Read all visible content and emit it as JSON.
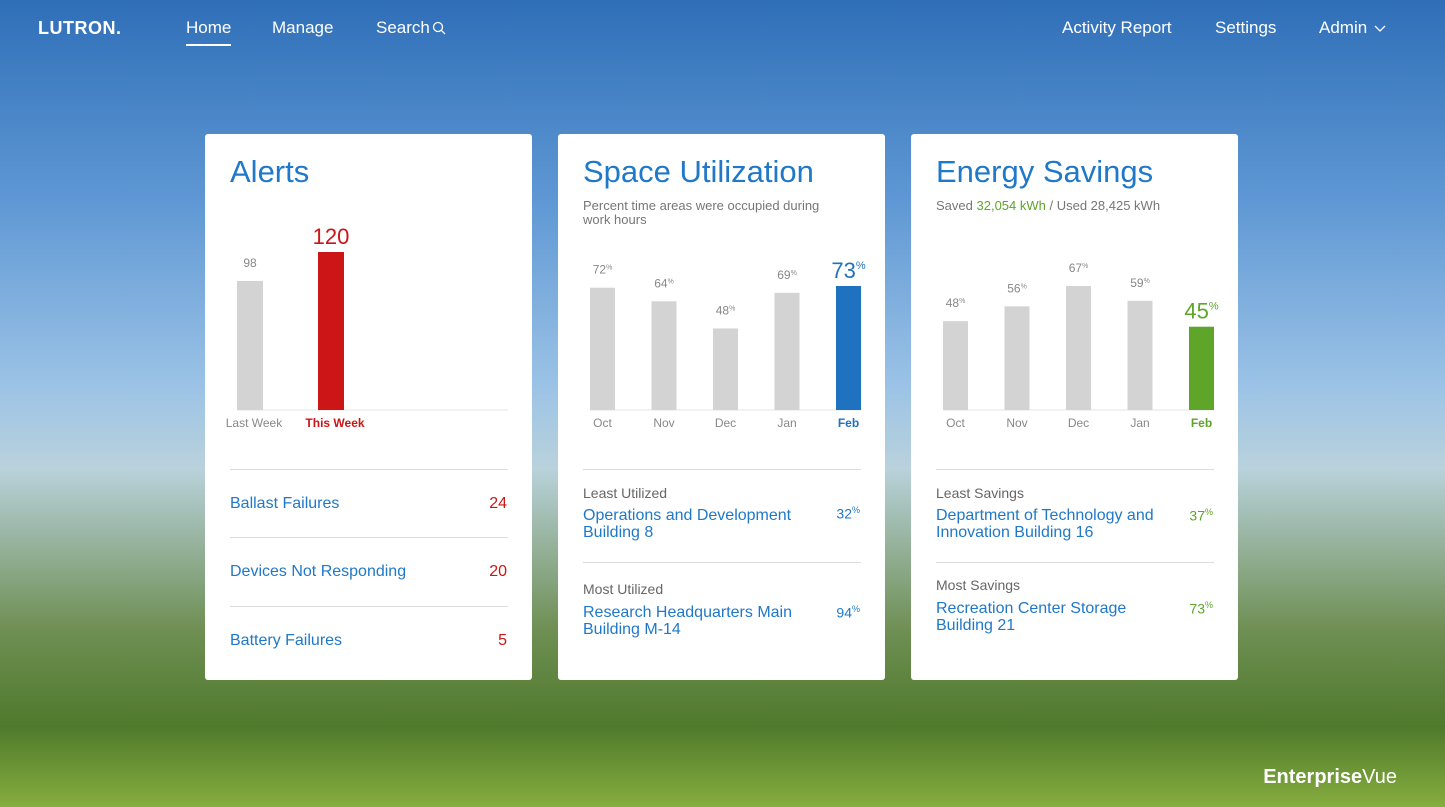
{
  "nav": {
    "brand": "LUTRON.",
    "left": [
      "Home",
      "Manage",
      "Search"
    ],
    "right": [
      "Activity Report",
      "Settings",
      "Admin"
    ]
  },
  "alerts": {
    "title": "Alerts",
    "chart": {
      "type": "bar",
      "categories": [
        "Last Week",
        "This Week"
      ],
      "values": [
        98,
        120
      ],
      "colors": [
        "#d3d3d3",
        "#cc1517"
      ]
    },
    "items": [
      {
        "label": "Ballast Failures",
        "value": 24
      },
      {
        "label": "Devices Not Responding",
        "value": 20
      },
      {
        "label": "Battery Failures",
        "value": 5
      }
    ]
  },
  "space": {
    "title": "Space Utilization",
    "subtitle": "Percent time areas were occupied during work hours",
    "chart": {
      "type": "bar",
      "categories": [
        "Oct",
        "Nov",
        "Dec",
        "Jan",
        "Feb"
      ],
      "values": [
        72,
        64,
        48,
        69,
        73
      ],
      "unit": "%",
      "colors": [
        "#d3d3d3",
        "#d3d3d3",
        "#d3d3d3",
        "#d3d3d3",
        "#1f72bf"
      ]
    },
    "least": {
      "label": "Least Utilized",
      "name": "Operations and Development Building 8",
      "value": 32
    },
    "most": {
      "label": "Most Utilized",
      "name": "Research Headquarters Main Building M-14",
      "value": 94
    }
  },
  "energy": {
    "title": "Energy Savings",
    "subtitle": [
      "Saved",
      "32,054 kWh",
      "/ Used 28,425 kWh"
    ],
    "chart": {
      "type": "bar",
      "categories": [
        "Oct",
        "Nov",
        "Dec",
        "Jan",
        "Feb"
      ],
      "values": [
        48,
        56,
        67,
        59,
        45
      ],
      "unit": "%",
      "colors": [
        "#d3d3d3",
        "#d3d3d3",
        "#d3d3d3",
        "#d3d3d3",
        "#5ea52a"
      ]
    },
    "least": {
      "label": "Least Savings",
      "name": "Department of Technology and Innovation Building 16",
      "value": 37
    },
    "most": {
      "label": "Most Savings",
      "name": "Recreation Center Storage Building 21",
      "value": 73
    }
  },
  "footer": [
    "Enterprise",
    "Vue"
  ]
}
